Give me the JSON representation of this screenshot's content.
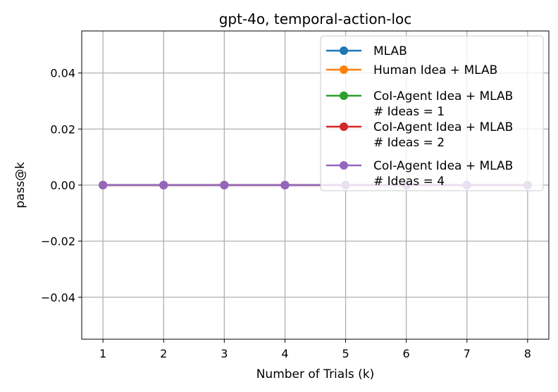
{
  "chart_data": {
    "type": "line",
    "title": "gpt-4o, temporal-action-loc",
    "xlabel": "Number of Trials (k)",
    "ylabel": "pass@k",
    "x": [
      1,
      2,
      3,
      4,
      5,
      6,
      7,
      8
    ],
    "x_ticks": [
      "1",
      "2",
      "3",
      "4",
      "5",
      "6",
      "7",
      "8"
    ],
    "xlim": [
      0.65,
      8.35
    ],
    "ylim": [
      -0.055,
      0.055
    ],
    "y_ticks": [
      0.04,
      0.02,
      0.0,
      -0.02,
      -0.04
    ],
    "y_tick_labels": [
      "0.04",
      "0.02",
      "0.00",
      "−0.02",
      "−0.04"
    ],
    "grid": true,
    "legend_position": "top-right",
    "series": [
      {
        "name": "MLAB",
        "color": "#1f77b4",
        "values": [
          0,
          0,
          0,
          0,
          0,
          0,
          0,
          0
        ]
      },
      {
        "name": "Human Idea + MLAB",
        "color": "#ff7f0e",
        "values": [
          0,
          0,
          0,
          0,
          0,
          0,
          0,
          0
        ]
      },
      {
        "name": "CoI-Agent Idea + MLAB\n# Ideas = 1",
        "color": "#2ca02c",
        "values": [
          0,
          0,
          0,
          0,
          0,
          0,
          0,
          0
        ]
      },
      {
        "name": "CoI-Agent Idea + MLAB\n# Ideas = 2",
        "color": "#d62728",
        "values": [
          0,
          0,
          0,
          0,
          0,
          0,
          0,
          0
        ]
      },
      {
        "name": "CoI-Agent Idea + MLAB\n# Ideas = 4",
        "color": "#9467bd",
        "values": [
          0,
          0,
          0,
          0,
          0,
          0,
          0,
          0
        ]
      }
    ]
  }
}
